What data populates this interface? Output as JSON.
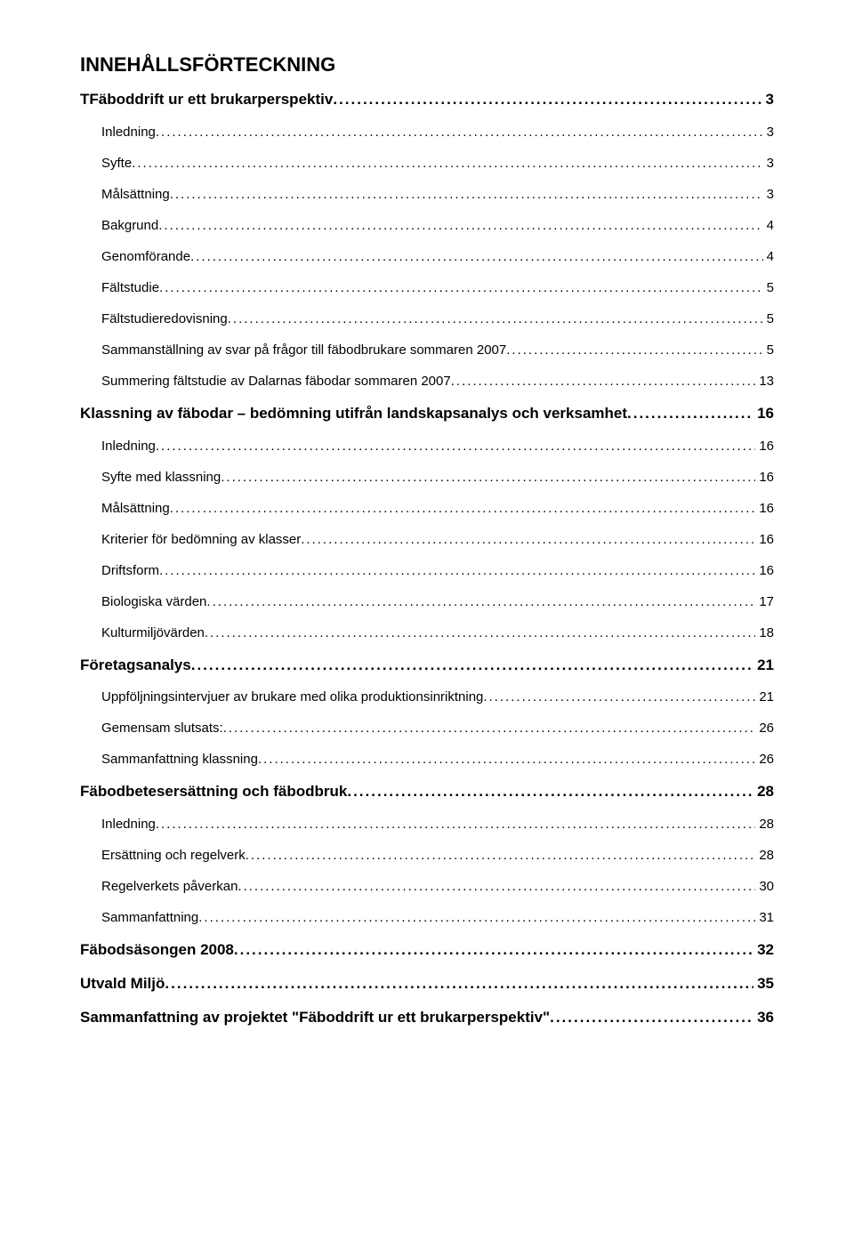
{
  "title": "INNEHÅLLSFÖRTECKNING",
  "entries": [
    {
      "level": 0,
      "label": "TFäboddrift ur ett brukarperspektiv",
      "page": "3"
    },
    {
      "level": 1,
      "label": "Inledning",
      "page": "3"
    },
    {
      "level": 1,
      "label": "Syfte",
      "page": "3"
    },
    {
      "level": 1,
      "label": "Målsättning",
      "page": "3"
    },
    {
      "level": 1,
      "label": "Bakgrund",
      "page": "4"
    },
    {
      "level": 1,
      "label": "Genomförande",
      "page": "4"
    },
    {
      "level": 1,
      "label": "Fältstudie",
      "page": "5"
    },
    {
      "level": 1,
      "label": "Fältstudieredovisning",
      "page": "5"
    },
    {
      "level": 1,
      "label": "Sammanställning av svar på frågor till fäbodbrukare sommaren 2007",
      "page": "5"
    },
    {
      "level": 1,
      "label": "Summering fältstudie av Dalarnas fäbodar sommaren 2007",
      "page": "13"
    },
    {
      "level": 0,
      "label": "Klassning av fäbodar – bedömning utifrån landskapsanalys och verksamhet",
      "page": "16"
    },
    {
      "level": 1,
      "label": "Inledning",
      "page": "16"
    },
    {
      "level": 1,
      "label": "Syfte med klassning",
      "page": "16"
    },
    {
      "level": 1,
      "label": "Målsättning",
      "page": "16"
    },
    {
      "level": 1,
      "label": "Kriterier för bedömning av klasser",
      "page": "16"
    },
    {
      "level": 1,
      "label": "Driftsform",
      "page": "16"
    },
    {
      "level": 1,
      "label": "Biologiska värden",
      "page": "17"
    },
    {
      "level": 1,
      "label": "Kulturmiljövärden",
      "page": "18"
    },
    {
      "level": 0,
      "label": "Företagsanalys",
      "page": "21"
    },
    {
      "level": 1,
      "label": "Uppföljningsintervjuer av brukare med olika produktionsinriktning",
      "page": "21"
    },
    {
      "level": 1,
      "label": "Gemensam slutsats:",
      "page": "26"
    },
    {
      "level": 1,
      "label": "Sammanfattning klassning",
      "page": "26"
    },
    {
      "level": 0,
      "label": "Fäbodbetesersättning och fäbodbruk",
      "page": "28"
    },
    {
      "level": 1,
      "label": "Inledning",
      "page": "28"
    },
    {
      "level": 1,
      "label": "Ersättning och regelverk",
      "page": "28"
    },
    {
      "level": 1,
      "label": "Regelverkets påverkan",
      "page": "30"
    },
    {
      "level": 1,
      "label": "Sammanfattning",
      "page": "31"
    },
    {
      "level": 0,
      "label": "Fäbodsäsongen 2008",
      "page": "32"
    },
    {
      "level": 0,
      "label": "Utvald Miljö",
      "page": "35"
    },
    {
      "level": 0,
      "label": "Sammanfattning av projektet \"Fäboddrift ur ett brukarperspektiv\"",
      "page": "36"
    }
  ]
}
